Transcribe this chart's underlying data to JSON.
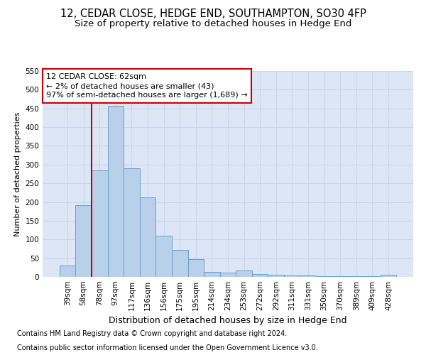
{
  "title": "12, CEDAR CLOSE, HEDGE END, SOUTHAMPTON, SO30 4FP",
  "subtitle": "Size of property relative to detached houses in Hedge End",
  "xlabel": "Distribution of detached houses by size in Hedge End",
  "ylabel": "Number of detached properties",
  "categories": [
    "39sqm",
    "58sqm",
    "78sqm",
    "97sqm",
    "117sqm",
    "136sqm",
    "156sqm",
    "175sqm",
    "195sqm",
    "214sqm",
    "234sqm",
    "253sqm",
    "272sqm",
    "292sqm",
    "311sqm",
    "331sqm",
    "350sqm",
    "370sqm",
    "389sqm",
    "409sqm",
    "428sqm"
  ],
  "values": [
    30,
    192,
    285,
    457,
    290,
    213,
    110,
    73,
    47,
    13,
    12,
    18,
    8,
    6,
    4,
    3,
    1,
    1,
    1,
    1,
    5
  ],
  "bar_color": "#b8d0ea",
  "bar_edge_color": "#6aa0cc",
  "vline_x": 1.5,
  "annotation_title": "12 CEDAR CLOSE: 62sqm",
  "annotation_line1": "← 2% of detached houses are smaller (43)",
  "annotation_line2": "97% of semi-detached houses are larger (1,689) →",
  "annotation_box_facecolor": "#ffffff",
  "annotation_box_edgecolor": "#cc0000",
  "vline_color": "#cc0000",
  "ylim": [
    0,
    550
  ],
  "yticks": [
    0,
    50,
    100,
    150,
    200,
    250,
    300,
    350,
    400,
    450,
    500,
    550
  ],
  "grid_color": "#c8d4e8",
  "background_color": "#dce6f5",
  "footnote1": "Contains HM Land Registry data © Crown copyright and database right 2024.",
  "footnote2": "Contains public sector information licensed under the Open Government Licence v3.0.",
  "title_fontsize": 10.5,
  "subtitle_fontsize": 9.5,
  "xlabel_fontsize": 9,
  "ylabel_fontsize": 8,
  "tick_fontsize": 7.5,
  "annotation_fontsize": 8,
  "footnote_fontsize": 7
}
